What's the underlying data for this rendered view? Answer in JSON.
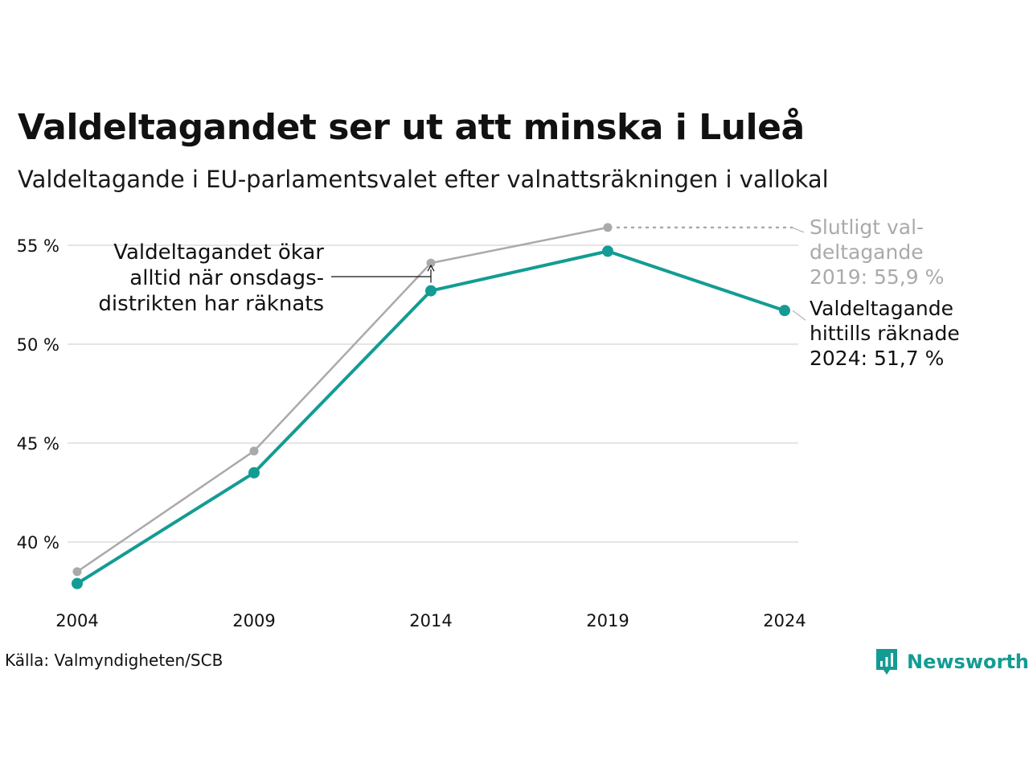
{
  "title": "Valdeltagandet ser ut att minska i Luleå",
  "subtitle": "Valdeltagande i EU-parlamentsvalet efter valnattsräkningen i vallokal",
  "source": "Källa: Valmyndigheten/SCB",
  "brand": {
    "name": "Newsworthy",
    "icon": "newsworthy-logo-icon",
    "color": "#139c93"
  },
  "chart_data": {
    "type": "line",
    "x": [
      2004,
      2009,
      2014,
      2019,
      2024
    ],
    "x_tick_labels": [
      "2004",
      "2009",
      "2014",
      "2019",
      "2024"
    ],
    "y_ticks": [
      40,
      45,
      50,
      55
    ],
    "y_tick_labels": [
      "40 %",
      "45 %",
      "50 %",
      "55 %"
    ],
    "ylim": [
      37.2,
      56.4
    ],
    "grid": true,
    "series": [
      {
        "key": "final",
        "color": "#aaaaaa",
        "x": [
          2004,
          2009,
          2014,
          2019
        ],
        "values": [
          38.5,
          44.6,
          54.1,
          55.9
        ]
      },
      {
        "key": "election_night",
        "color": "#139c93",
        "x": [
          2004,
          2009,
          2014,
          2019,
          2024
        ],
        "values": [
          37.9,
          43.5,
          52.7,
          54.7,
          51.7
        ]
      }
    ],
    "annotations": {
      "onsdag": {
        "lines": [
          "Valdeltagandet ökar",
          "alltid när onsdags-",
          "distrikten har räknats"
        ],
        "x": 2014,
        "from": 52.7,
        "to": 54.1
      },
      "final_label": {
        "lines": [
          "Slutligt val-",
          "deltagande",
          "2019: 55,9 %"
        ],
        "x": 2019,
        "value": 55.9,
        "color": "#aaaaaa"
      },
      "current_label": {
        "lines": [
          "Valdeltagande",
          "hittills räknade",
          "2024: 51,7 %"
        ],
        "x": 2024,
        "value": 51.7,
        "color": "#111111"
      }
    }
  }
}
